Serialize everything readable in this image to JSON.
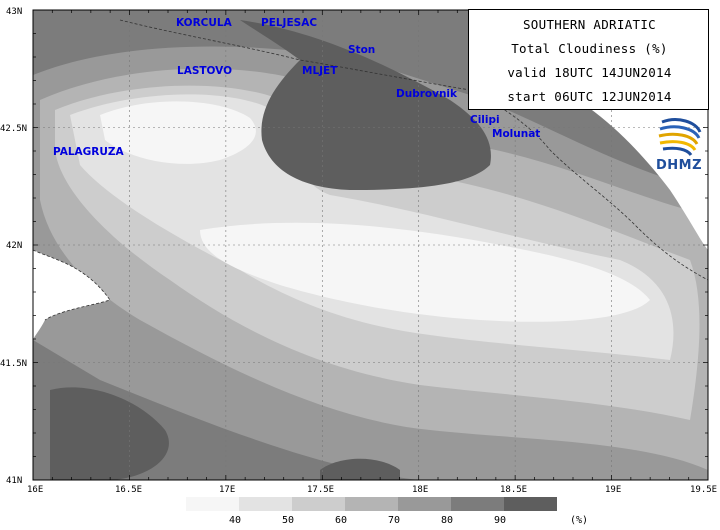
{
  "info_box": {
    "region": "SOUTHERN ADRIATIC",
    "parameter": "Total Cloudiness (%)",
    "valid": "valid 18UTC 14JUN2014",
    "start": "start 06UTC 12JUN2014"
  },
  "logo": {
    "text": "DHMZ",
    "icon": "dhmz-swirl-logo"
  },
  "map": {
    "lat_labels": [
      "43N",
      "42.5N",
      "42N",
      "41.5N",
      "41N"
    ],
    "lon_labels": [
      "16E",
      "16.5E",
      "17E",
      "17.5E",
      "18E",
      "18.5E",
      "19E",
      "19.5E"
    ],
    "lat_range": [
      41.0,
      43.0
    ],
    "lon_range": [
      16.0,
      19.5
    ],
    "places": [
      {
        "name": "KORCULA",
        "lon": 16.76,
        "lat": 42.93
      },
      {
        "name": "PELJESAC",
        "lon": 17.2,
        "lat": 42.93
      },
      {
        "name": "Ston",
        "lon": 17.63,
        "lat": 42.8
      },
      {
        "name": "LASTOVO",
        "lon": 16.78,
        "lat": 42.7
      },
      {
        "name": "MLJET",
        "lon": 17.39,
        "lat": 42.7
      },
      {
        "name": "Dubrovnik",
        "lon": 17.87,
        "lat": 42.63
      },
      {
        "name": "PALAGRUZA",
        "lon": 16.1,
        "lat": 42.39
      },
      {
        "name": "Cilipi",
        "lon": 18.27,
        "lat": 42.53
      },
      {
        "name": "Molunat",
        "lon": 18.39,
        "lat": 42.47
      }
    ]
  },
  "legend": {
    "unit": "(%)",
    "labels": [
      "40",
      "50",
      "60",
      "70",
      "80",
      "90"
    ],
    "colors": [
      "#f6f6f6",
      "#e3e3e3",
      "#cdcdcd",
      "#b4b4b4",
      "#999999",
      "#7c7c7c",
      "#5e5e5e"
    ]
  }
}
